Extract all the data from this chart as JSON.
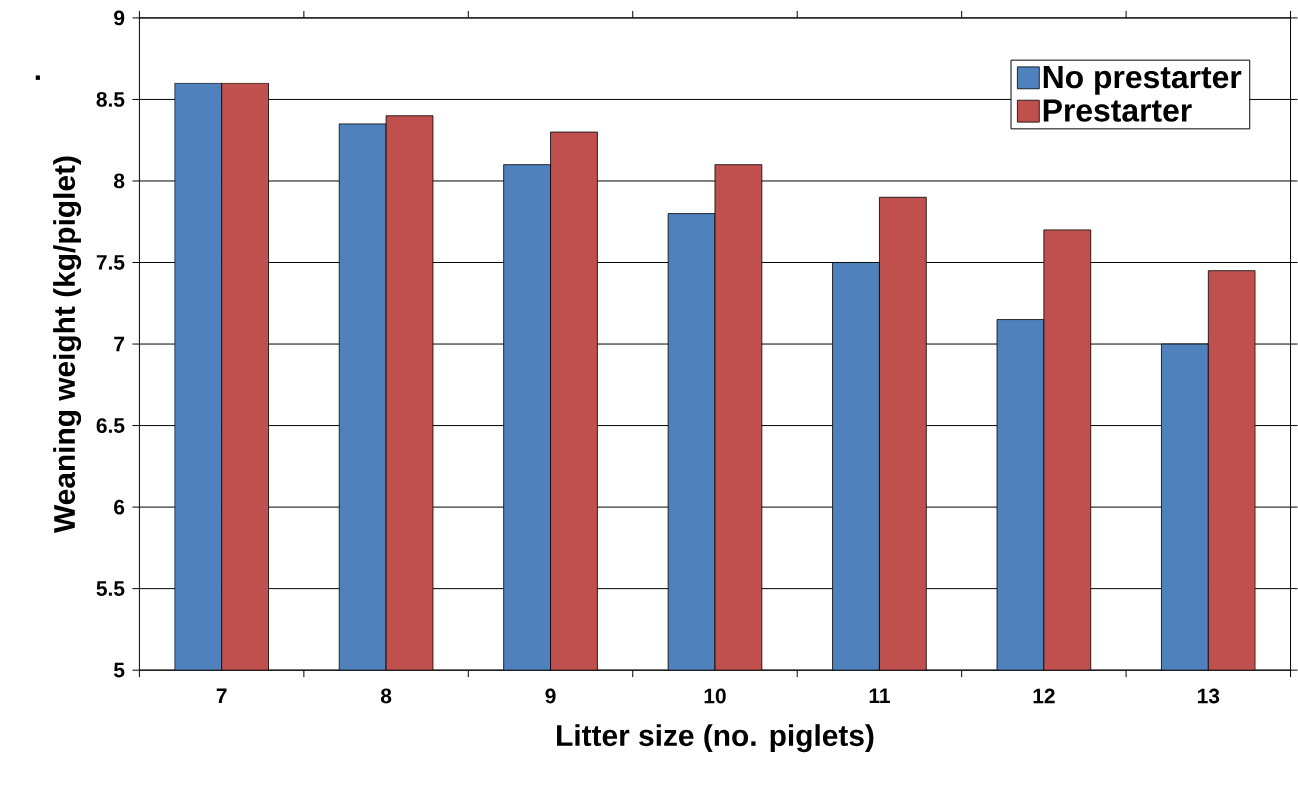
{
  "chart_data": {
    "type": "bar",
    "categories": [
      "7",
      "8",
      "9",
      "10",
      "11",
      "12",
      "13"
    ],
    "series": [
      {
        "name": "No prestarter",
        "color": "#4f81bd",
        "values": [
          8.6,
          8.35,
          8.1,
          7.8,
          7.5,
          7.15,
          7.0
        ]
      },
      {
        "name": "Prestarter",
        "color": "#c0504d",
        "values": [
          8.6,
          8.4,
          8.3,
          8.1,
          7.9,
          7.7,
          7.45
        ]
      }
    ],
    "xlabel": "Litter size (no. piglets)",
    "ylabel": "Weaning weight (kg/piglet)",
    "annotations": [
      "."
    ],
    "ylim": [
      5,
      9
    ],
    "yticks": [
      5,
      5.5,
      6,
      6.5,
      7,
      7.5,
      8,
      8.5,
      9
    ],
    "grid": "y",
    "legend": "top right"
  }
}
